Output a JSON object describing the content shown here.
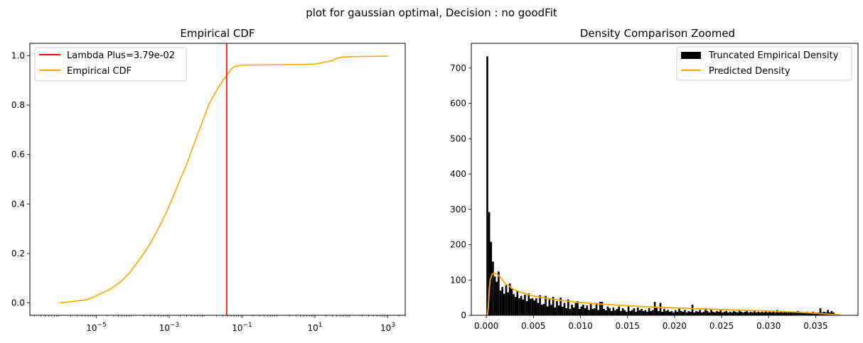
{
  "figure_title": "plot for gaussian optimal, Decision : no goodFit",
  "chart_data": [
    {
      "type": "line",
      "title": "Empirical CDF",
      "xlabel": "",
      "ylabel": "",
      "x_scale": "log",
      "xlim": [
        1.5e-07,
        3000
      ],
      "ylim": [
        -0.05,
        1.05
      ],
      "x_ticks": [
        {
          "value": 1e-05,
          "base": "10",
          "exp": "−5"
        },
        {
          "value": 0.001,
          "base": "10",
          "exp": "−3"
        },
        {
          "value": 0.1,
          "base": "10",
          "exp": "−1"
        },
        {
          "value": 10,
          "base": "10",
          "exp": "1"
        },
        {
          "value": 1000,
          "base": "10",
          "exp": "3"
        }
      ],
      "y_ticks": [
        {
          "value": 0.0,
          "label": "0.0"
        },
        {
          "value": 0.2,
          "label": "0.2"
        },
        {
          "value": 0.4,
          "label": "0.4"
        },
        {
          "value": 0.6,
          "label": "0.6"
        },
        {
          "value": 0.8,
          "label": "0.8"
        },
        {
          "value": 1.0,
          "label": "1.0"
        }
      ],
      "grid": false,
      "legend_position": "top-left",
      "vline": {
        "name": "Lambda Plus=3.79e-02",
        "x": 0.0379,
        "color": "#ff0000"
      },
      "series": [
        {
          "name": "Empirical CDF",
          "color": "#ffa500",
          "points": [
            [
              1e-06,
              0.0
            ],
            [
              2e-06,
              0.005
            ],
            [
              5e-06,
              0.012
            ],
            [
              8e-06,
              0.022
            ],
            [
              1.2e-05,
              0.035
            ],
            [
              2e-05,
              0.05
            ],
            [
              3e-05,
              0.065
            ],
            [
              5e-05,
              0.09
            ],
            [
              8e-05,
              0.12
            ],
            [
              0.00012,
              0.155
            ],
            [
              0.0002,
              0.2
            ],
            [
              0.0003,
              0.24
            ],
            [
              0.0005,
              0.3
            ],
            [
              0.0008,
              0.36
            ],
            [
              0.0012,
              0.42
            ],
            [
              0.002,
              0.5
            ],
            [
              0.003,
              0.56
            ],
            [
              0.005,
              0.65
            ],
            [
              0.008,
              0.73
            ],
            [
              0.012,
              0.8
            ],
            [
              0.02,
              0.86
            ],
            [
              0.03,
              0.9
            ],
            [
              0.04,
              0.925
            ],
            [
              0.05,
              0.945
            ],
            [
              0.06,
              0.955
            ],
            [
              0.08,
              0.96
            ],
            [
              0.1,
              0.962
            ],
            [
              1,
              0.963
            ],
            [
              10,
              0.966
            ],
            [
              20,
              0.975
            ],
            [
              30,
              0.98
            ],
            [
              40,
              0.99
            ],
            [
              60,
              0.995
            ],
            [
              100,
              0.996
            ],
            [
              1000,
              0.998
            ]
          ]
        }
      ]
    },
    {
      "type": "bar",
      "title": "Density Comparison Zoomed",
      "xlabel": "",
      "ylabel": "",
      "xlim": [
        -0.0016,
        0.0395
      ],
      "ylim": [
        0,
        770
      ],
      "x_ticks": [
        {
          "value": 0.0,
          "label": "0.000"
        },
        {
          "value": 0.005,
          "label": "0.005"
        },
        {
          "value": 0.01,
          "label": "0.010"
        },
        {
          "value": 0.015,
          "label": "0.015"
        },
        {
          "value": 0.02,
          "label": "0.020"
        },
        {
          "value": 0.025,
          "label": "0.025"
        },
        {
          "value": 0.03,
          "label": "0.030"
        },
        {
          "value": 0.035,
          "label": "0.035"
        }
      ],
      "y_ticks": [
        {
          "value": 0,
          "label": "0"
        },
        {
          "value": 100,
          "label": "100"
        },
        {
          "value": 200,
          "label": "200"
        },
        {
          "value": 300,
          "label": "300"
        },
        {
          "value": 400,
          "label": "400"
        },
        {
          "value": 500,
          "label": "500"
        },
        {
          "value": 600,
          "label": "600"
        },
        {
          "value": 700,
          "label": "700"
        }
      ],
      "grid": false,
      "legend_position": "top-right",
      "bar_series": {
        "name": "Truncated Empirical Density",
        "color": "#000000",
        "bin_width": 0.0002,
        "bin_start": 0.0,
        "values": [
          733,
          292,
          208,
          152,
          110,
          95,
          124,
          70,
          80,
          61,
          85,
          65,
          90,
          75,
          60,
          52,
          70,
          48,
          55,
          45,
          58,
          40,
          62,
          47,
          48,
          42,
          48,
          35,
          57,
          30,
          32,
          55,
          25,
          45,
          30,
          52,
          22,
          40,
          28,
          50,
          24,
          35,
          20,
          45,
          18,
          30,
          22,
          35,
          40,
          18,
          25,
          30,
          20,
          28,
          15,
          32,
          18,
          20,
          35,
          15,
          38,
          38,
          18,
          14,
          25,
          20,
          12,
          22,
          14,
          18,
          25,
          12,
          20,
          15,
          10,
          25,
          12,
          15,
          20,
          10,
          22,
          14,
          18,
          12,
          15,
          10,
          20,
          12,
          15,
          38,
          22,
          12,
          35,
          10,
          18,
          12,
          15,
          10,
          12,
          8,
          15,
          10,
          18,
          12,
          10,
          15,
          8,
          12,
          10,
          30,
          8,
          12,
          10,
          15,
          8,
          10,
          20,
          12,
          8,
          15,
          10,
          8,
          12,
          10,
          15,
          8,
          10,
          12,
          8,
          10,
          8,
          12,
          10,
          8,
          15,
          10,
          8,
          10,
          12,
          8,
          10,
          8,
          12,
          8,
          10,
          8,
          10,
          8,
          12,
          8,
          10,
          8,
          10,
          8,
          15,
          8,
          10,
          8,
          12,
          8,
          10,
          8,
          8,
          10,
          8,
          12,
          8,
          10,
          8,
          8,
          10,
          8,
          8,
          10,
          8,
          8,
          8,
          20,
          8,
          10,
          8,
          15,
          8,
          12,
          8
        ]
      },
      "series": [
        {
          "name": "Predicted Density",
          "color": "#ffa500",
          "points": [
            [
              0.0001,
              0
            ],
            [
              0.0002,
              20
            ],
            [
              0.0003,
              70
            ],
            [
              0.0004,
              100
            ],
            [
              0.0006,
              115
            ],
            [
              0.0008,
              120
            ],
            [
              0.001,
              118
            ],
            [
              0.0015,
              108
            ],
            [
              0.002,
              90
            ],
            [
              0.003,
              72
            ],
            [
              0.004,
              62
            ],
            [
              0.005,
              55
            ],
            [
              0.006,
              50
            ],
            [
              0.008,
              42
            ],
            [
              0.01,
              36
            ],
            [
              0.012,
              32
            ],
            [
              0.015,
              27
            ],
            [
              0.018,
              23
            ],
            [
              0.02,
              21
            ],
            [
              0.025,
              16
            ],
            [
              0.03,
              12
            ],
            [
              0.033,
              9
            ],
            [
              0.035,
              6
            ],
            [
              0.036,
              4
            ],
            [
              0.037,
              2
            ],
            [
              0.0376,
              1
            ]
          ]
        }
      ]
    }
  ]
}
